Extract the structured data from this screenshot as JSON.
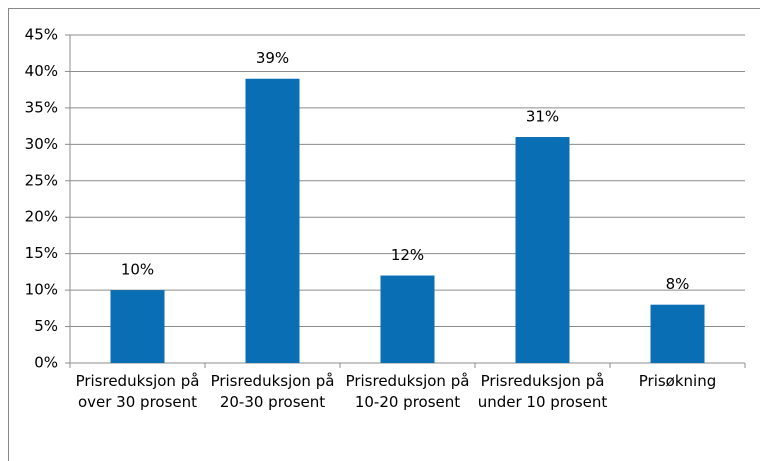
{
  "chart_data": {
    "type": "bar",
    "categories": [
      "Prisreduksjon på over 30 prosent",
      "Prisreduksjon på 20-30 prosent",
      "Prisreduksjon på 10-20 prosent",
      "Prisreduksjon på under 10 prosent",
      "Prisøkning"
    ],
    "values": [
      10,
      39,
      12,
      31,
      8
    ],
    "value_labels": [
      "10%",
      "39%",
      "12%",
      "31%",
      "8%"
    ],
    "color": "#0a6eb4",
    "ylim": [
      0,
      45
    ],
    "yticks": [
      {
        "value": 0,
        "label": "0%"
      },
      {
        "value": 5,
        "label": "5%"
      },
      {
        "value": 10,
        "label": "10%"
      },
      {
        "value": 15,
        "label": "15%"
      },
      {
        "value": 20,
        "label": "20%"
      },
      {
        "value": 25,
        "label": "25%"
      },
      {
        "value": 30,
        "label": "30%"
      },
      {
        "value": 35,
        "label": "35%"
      },
      {
        "value": 40,
        "label": "40%"
      },
      {
        "value": 45,
        "label": "45%"
      }
    ],
    "grid": true
  }
}
